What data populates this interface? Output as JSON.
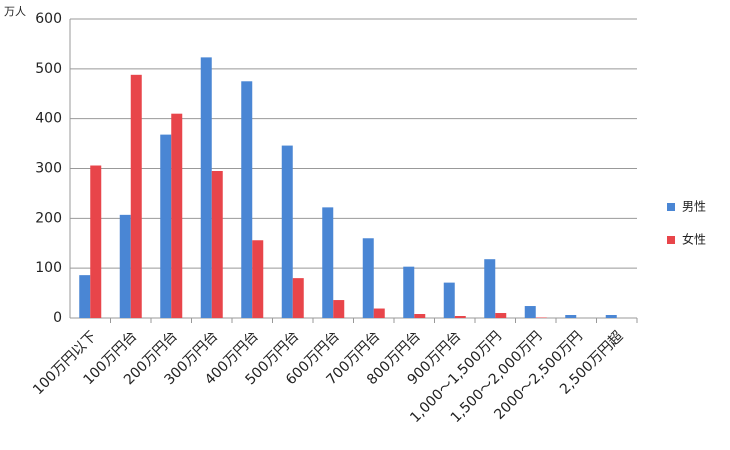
{
  "chart_data": {
    "type": "bar",
    "y_label": "万人",
    "categories": [
      "100万円以下",
      "100万円台",
      "200万円台",
      "300万円台",
      "400万円台",
      "500万円台",
      "600万円台",
      "700万円台",
      "800万円台",
      "900万円台",
      "1,000～1,500万円",
      "1,500～2,000万円",
      "2000～2,500万円",
      "2,500万円超"
    ],
    "series": [
      {
        "name": "男性",
        "color": "#4a86d4",
        "values": [
          86,
          207,
          368,
          523,
          475,
          346,
          222,
          160,
          103,
          71,
          118,
          24,
          6,
          6
        ]
      },
      {
        "name": "女性",
        "color": "#e8454a",
        "values": [
          306,
          488,
          410,
          295,
          156,
          80,
          36,
          19,
          8,
          4,
          10,
          1,
          0,
          0
        ]
      }
    ],
    "ylim": [
      0,
      600
    ],
    "yticks": [
      0,
      100,
      200,
      300,
      400,
      500,
      600
    ],
    "grid": true,
    "legend": "right"
  }
}
